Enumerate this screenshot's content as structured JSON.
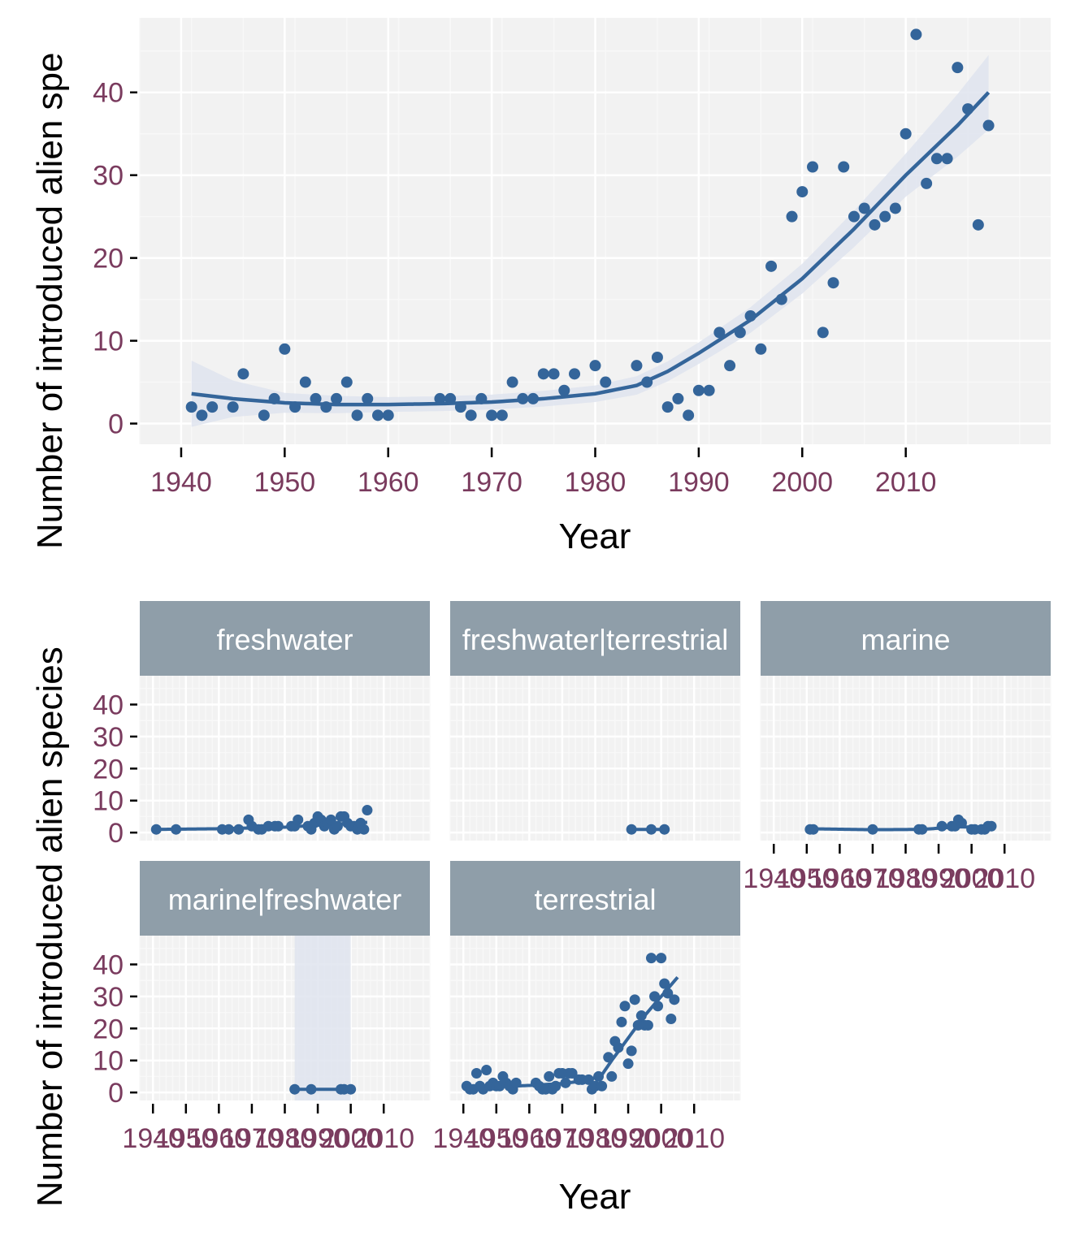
{
  "colors": {
    "point": "#34659a",
    "line": "#34659a",
    "ribbon": "#dfe4ee",
    "panel_bg": "#f2f2f2",
    "grid_major": "#ffffff",
    "grid_minor": "#f8f8f8",
    "strip_bg": "#8f9ea9",
    "strip_text": "#ffffff",
    "tick_text": "#7a3b5e"
  },
  "chart_data": [
    {
      "type": "scatter",
      "title": "",
      "xlabel": "Year",
      "ylabel": "Number of introduced alien spe",
      "xlim": [
        1936,
        2024
      ],
      "ylim": [
        -2.5,
        49
      ],
      "xticks": [
        1940,
        1950,
        1960,
        1970,
        1980,
        1990,
        2000,
        2010
      ],
      "yticks": [
        0,
        10,
        20,
        30,
        40
      ],
      "grid": true,
      "points": [
        [
          1941,
          2
        ],
        [
          1942,
          1
        ],
        [
          1943,
          2
        ],
        [
          1945,
          2
        ],
        [
          1946,
          6
        ],
        [
          1948,
          1
        ],
        [
          1949,
          3
        ],
        [
          1950,
          9
        ],
        [
          1951,
          2
        ],
        [
          1952,
          5
        ],
        [
          1953,
          3
        ],
        [
          1954,
          2
        ],
        [
          1955,
          3
        ],
        [
          1956,
          5
        ],
        [
          1957,
          1
        ],
        [
          1958,
          3
        ],
        [
          1959,
          1
        ],
        [
          1960,
          1
        ],
        [
          1965,
          3
        ],
        [
          1966,
          3
        ],
        [
          1967,
          2
        ],
        [
          1968,
          1
        ],
        [
          1969,
          3
        ],
        [
          1970,
          1
        ],
        [
          1971,
          1
        ],
        [
          1972,
          5
        ],
        [
          1973,
          3
        ],
        [
          1974,
          3
        ],
        [
          1975,
          6
        ],
        [
          1976,
          6
        ],
        [
          1977,
          4
        ],
        [
          1978,
          6
        ],
        [
          1980,
          7
        ],
        [
          1981,
          5
        ],
        [
          1984,
          7
        ],
        [
          1985,
          5
        ],
        [
          1986,
          8
        ],
        [
          1987,
          2
        ],
        [
          1988,
          3
        ],
        [
          1989,
          1
        ],
        [
          1990,
          4
        ],
        [
          1991,
          4
        ],
        [
          1992,
          11
        ],
        [
          1993,
          7
        ],
        [
          1994,
          11
        ],
        [
          1995,
          13
        ],
        [
          1996,
          9
        ],
        [
          1997,
          19
        ],
        [
          1998,
          15
        ],
        [
          1999,
          25
        ],
        [
          2000,
          28
        ],
        [
          2001,
          31
        ],
        [
          2002,
          11
        ],
        [
          2003,
          17
        ],
        [
          2004,
          31
        ],
        [
          2005,
          25
        ],
        [
          2006,
          26
        ],
        [
          2007,
          24
        ],
        [
          2008,
          25
        ],
        [
          2009,
          26
        ],
        [
          2010,
          35
        ],
        [
          2011,
          47
        ],
        [
          2012,
          29
        ],
        [
          2013,
          32
        ],
        [
          2014,
          32
        ],
        [
          2015,
          43
        ],
        [
          2016,
          38
        ],
        [
          2017,
          24
        ],
        [
          2018,
          36
        ]
      ],
      "smooth": [
        [
          1941,
          3.6
        ],
        [
          1945,
          3.0
        ],
        [
          1950,
          2.5
        ],
        [
          1955,
          2.3
        ],
        [
          1960,
          2.3
        ],
        [
          1965,
          2.4
        ],
        [
          1970,
          2.6
        ],
        [
          1975,
          3.0
        ],
        [
          1980,
          3.6
        ],
        [
          1984,
          4.6
        ],
        [
          1987,
          6.3
        ],
        [
          1990,
          8.5
        ],
        [
          1995,
          12.5
        ],
        [
          2000,
          17.5
        ],
        [
          2005,
          23.5
        ],
        [
          2010,
          30
        ],
        [
          2015,
          36
        ],
        [
          2018,
          40
        ]
      ],
      "ribbon_half_width": [
        [
          1941,
          4.0
        ],
        [
          1945,
          2.2
        ],
        [
          1950,
          1.2
        ],
        [
          1960,
          0.9
        ],
        [
          1970,
          0.9
        ],
        [
          1980,
          1.0
        ],
        [
          1990,
          1.3
        ],
        [
          2000,
          1.8
        ],
        [
          2010,
          2.6
        ],
        [
          2018,
          4.5
        ]
      ]
    },
    {
      "type": "scatter",
      "title": "",
      "xlabel": "Year",
      "ylabel": "Number of introduced alien species",
      "xlim": [
        1936,
        2024
      ],
      "ylim": [
        -2.5,
        49
      ],
      "xticks": [
        1940,
        1950,
        1960,
        1970,
        1980,
        1990,
        2000,
        2010
      ],
      "xtick_labels": [
        "1940",
        "1950",
        "1960",
        "1970",
        "1980",
        "1990",
        "2000",
        "2010"
      ],
      "yticks": [
        0,
        10,
        20,
        30,
        40
      ],
      "grid": true,
      "facets": [
        {
          "label": "freshwater",
          "points": [
            [
              1941,
              1
            ],
            [
              1947,
              1
            ],
            [
              1961,
              1
            ],
            [
              1963,
              1
            ],
            [
              1966,
              1
            ],
            [
              1969,
              4
            ],
            [
              1970,
              2
            ],
            [
              1972,
              1
            ],
            [
              1973,
              1
            ],
            [
              1975,
              2
            ],
            [
              1977,
              2
            ],
            [
              1978,
              2
            ],
            [
              1982,
              2
            ],
            [
              1983,
              2
            ],
            [
              1984,
              4
            ],
            [
              1987,
              2
            ],
            [
              1988,
              1
            ],
            [
              1989,
              3
            ],
            [
              1990,
              5
            ],
            [
              1991,
              4
            ],
            [
              1992,
              2
            ],
            [
              1993,
              3
            ],
            [
              1994,
              4
            ],
            [
              1995,
              1
            ],
            [
              1996,
              2
            ],
            [
              1997,
              5
            ],
            [
              1998,
              5
            ],
            [
              1999,
              3
            ],
            [
              2000,
              2
            ],
            [
              2001,
              2
            ],
            [
              2002,
              1
            ],
            [
              2003,
              3
            ],
            [
              2004,
              1
            ],
            [
              2005,
              7
            ]
          ],
          "smooth": [
            [
              1941,
              1.0
            ],
            [
              1960,
              1.2
            ],
            [
              1980,
              1.7
            ],
            [
              1995,
              2.6
            ],
            [
              2005,
              3.2
            ]
          ]
        },
        {
          "label": "freshwater|terrestrial",
          "points": [
            [
              1991,
              1
            ],
            [
              1997,
              1
            ],
            [
              2001,
              1
            ]
          ],
          "smooth": [
            [
              1991,
              1.0
            ],
            [
              2001,
              1.0
            ]
          ]
        },
        {
          "label": "marine",
          "points": [
            [
              1951,
              1
            ],
            [
              1952,
              1
            ],
            [
              1970,
              1
            ],
            [
              1984,
              1
            ],
            [
              1985,
              1
            ],
            [
              1991,
              2
            ],
            [
              1994,
              2
            ],
            [
              1995,
              2
            ],
            [
              1996,
              4
            ],
            [
              1997,
              3
            ],
            [
              2000,
              1
            ],
            [
              2001,
              1
            ],
            [
              2003,
              1
            ],
            [
              2004,
              1
            ],
            [
              2005,
              2
            ],
            [
              2006,
              2
            ]
          ],
          "smooth": [
            [
              1951,
              1.2
            ],
            [
              1970,
              0.9
            ],
            [
              1985,
              1.0
            ],
            [
              1996,
              1.8
            ],
            [
              2006,
              1.6
            ]
          ]
        },
        {
          "label": "marine|freshwater",
          "points": [
            [
              1983,
              1
            ],
            [
              1988,
              1
            ],
            [
              1997,
              1
            ],
            [
              1998,
              1
            ],
            [
              2000,
              1
            ]
          ],
          "smooth": [
            [
              1983,
              1.0
            ],
            [
              2000,
              1.0
            ]
          ],
          "ribbon_range": [
            1983,
            2000
          ]
        },
        {
          "label": "terrestrial",
          "points": [
            [
              1941,
              2
            ],
            [
              1942,
              1
            ],
            [
              1943,
              1
            ],
            [
              1944,
              6
            ],
            [
              1945,
              2
            ],
            [
              1946,
              1
            ],
            [
              1947,
              7
            ],
            [
              1948,
              2
            ],
            [
              1949,
              3
            ],
            [
              1950,
              2
            ],
            [
              1951,
              2
            ],
            [
              1952,
              5
            ],
            [
              1953,
              3
            ],
            [
              1954,
              2
            ],
            [
              1955,
              1
            ],
            [
              1956,
              3
            ],
            [
              1962,
              3
            ],
            [
              1963,
              2
            ],
            [
              1964,
              1
            ],
            [
              1965,
              1
            ],
            [
              1966,
              5
            ],
            [
              1967,
              1
            ],
            [
              1968,
              2
            ],
            [
              1969,
              6
            ],
            [
              1970,
              6
            ],
            [
              1971,
              3
            ],
            [
              1972,
              6
            ],
            [
              1973,
              6
            ],
            [
              1975,
              4
            ],
            [
              1976,
              4
            ],
            [
              1978,
              4
            ],
            [
              1979,
              1
            ],
            [
              1980,
              2
            ],
            [
              1981,
              5
            ],
            [
              1982,
              2
            ],
            [
              1984,
              11
            ],
            [
              1985,
              5
            ],
            [
              1986,
              16
            ],
            [
              1987,
              14
            ],
            [
              1988,
              22
            ],
            [
              1989,
              27
            ],
            [
              1990,
              9
            ],
            [
              1991,
              13
            ],
            [
              1992,
              29
            ],
            [
              1993,
              21
            ],
            [
              1994,
              24
            ],
            [
              1995,
              21
            ],
            [
              1996,
              21
            ],
            [
              1997,
              42
            ],
            [
              1998,
              30
            ],
            [
              1999,
              27
            ],
            [
              2000,
              42
            ],
            [
              2001,
              34
            ],
            [
              2002,
              31
            ],
            [
              2003,
              23
            ],
            [
              2004,
              29
            ]
          ],
          "smooth": [
            [
              1941,
              1.6
            ],
            [
              1950,
              1.8
            ],
            [
              1960,
              2.2
            ],
            [
              1970,
              2.8
            ],
            [
              1978,
              3.8
            ],
            [
              1982,
              5.5
            ],
            [
              1985,
              10
            ],
            [
              1990,
              17
            ],
            [
              1995,
              24
            ],
            [
              2000,
              30
            ],
            [
              2005,
              36
            ]
          ]
        }
      ]
    }
  ]
}
